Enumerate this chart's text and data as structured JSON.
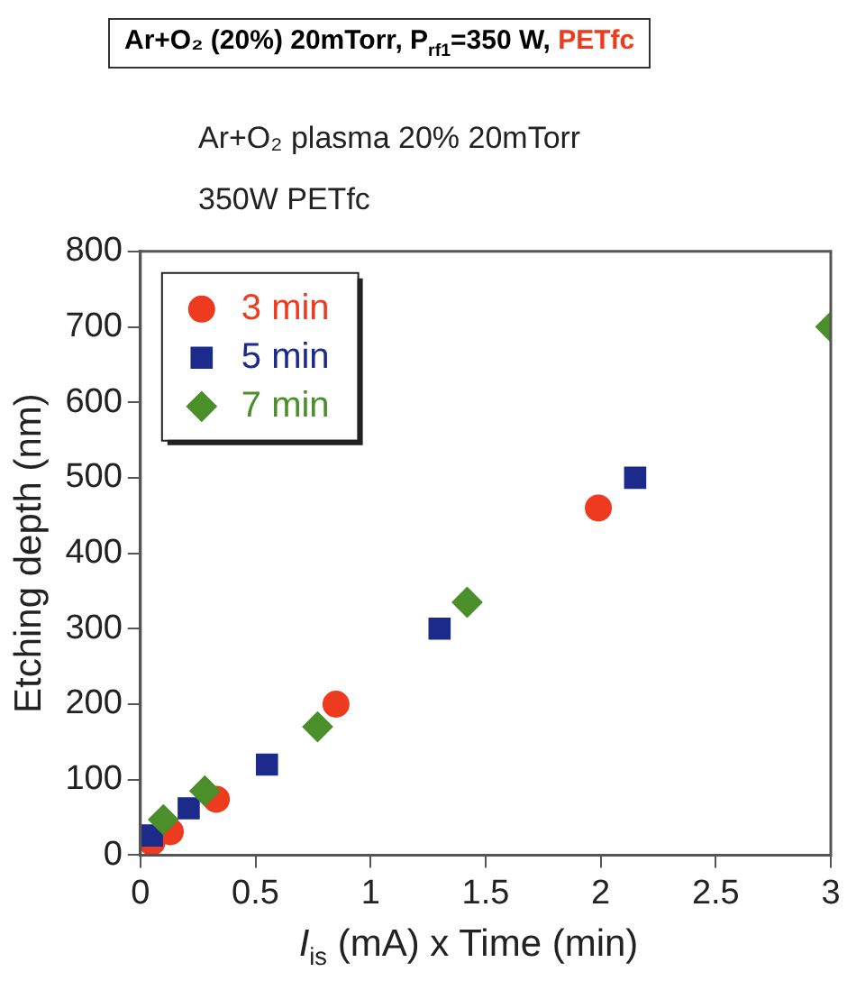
{
  "chart_data": {
    "type": "scatter",
    "title": "Ar+O₂ (20%) 20mTorr, P$_{rf1}$=350 W, PETfc",
    "subtitle": "Ar+O₂ plasma 20%  20mTorr\n350W  PETfc",
    "xlabel": "I$_{is}$ (mA) x Time (min)",
    "ylabel": "Etching depth (nm)",
    "xlim": [
      0,
      3
    ],
    "xticks": [
      0,
      0.5,
      1,
      1.5,
      2,
      2.5,
      3
    ],
    "ylim": [
      0,
      800
    ],
    "yticks": [
      0,
      100,
      200,
      300,
      400,
      500,
      600,
      700,
      800
    ],
    "grid": false,
    "legend": "top left",
    "series": [
      {
        "name": "3 min",
        "color": "#ee3a1e",
        "marker": "circle",
        "x": [
          0.05,
          0.13,
          0.33,
          0.85,
          1.99
        ],
        "values": [
          17,
          31,
          74,
          200,
          460
        ]
      },
      {
        "name": "5 min",
        "color": "#1c2a8c",
        "marker": "square",
        "x": [
          0.05,
          0.21,
          0.55,
          1.3,
          2.15
        ],
        "values": [
          26,
          62,
          120,
          300,
          500
        ]
      },
      {
        "name": "7 min",
        "color": "#4a8f2a",
        "marker": "diamond",
        "x": [
          0.1,
          0.28,
          0.77,
          1.42,
          3.0
        ],
        "values": [
          47,
          85,
          170,
          335,
          700
        ]
      }
    ]
  }
}
